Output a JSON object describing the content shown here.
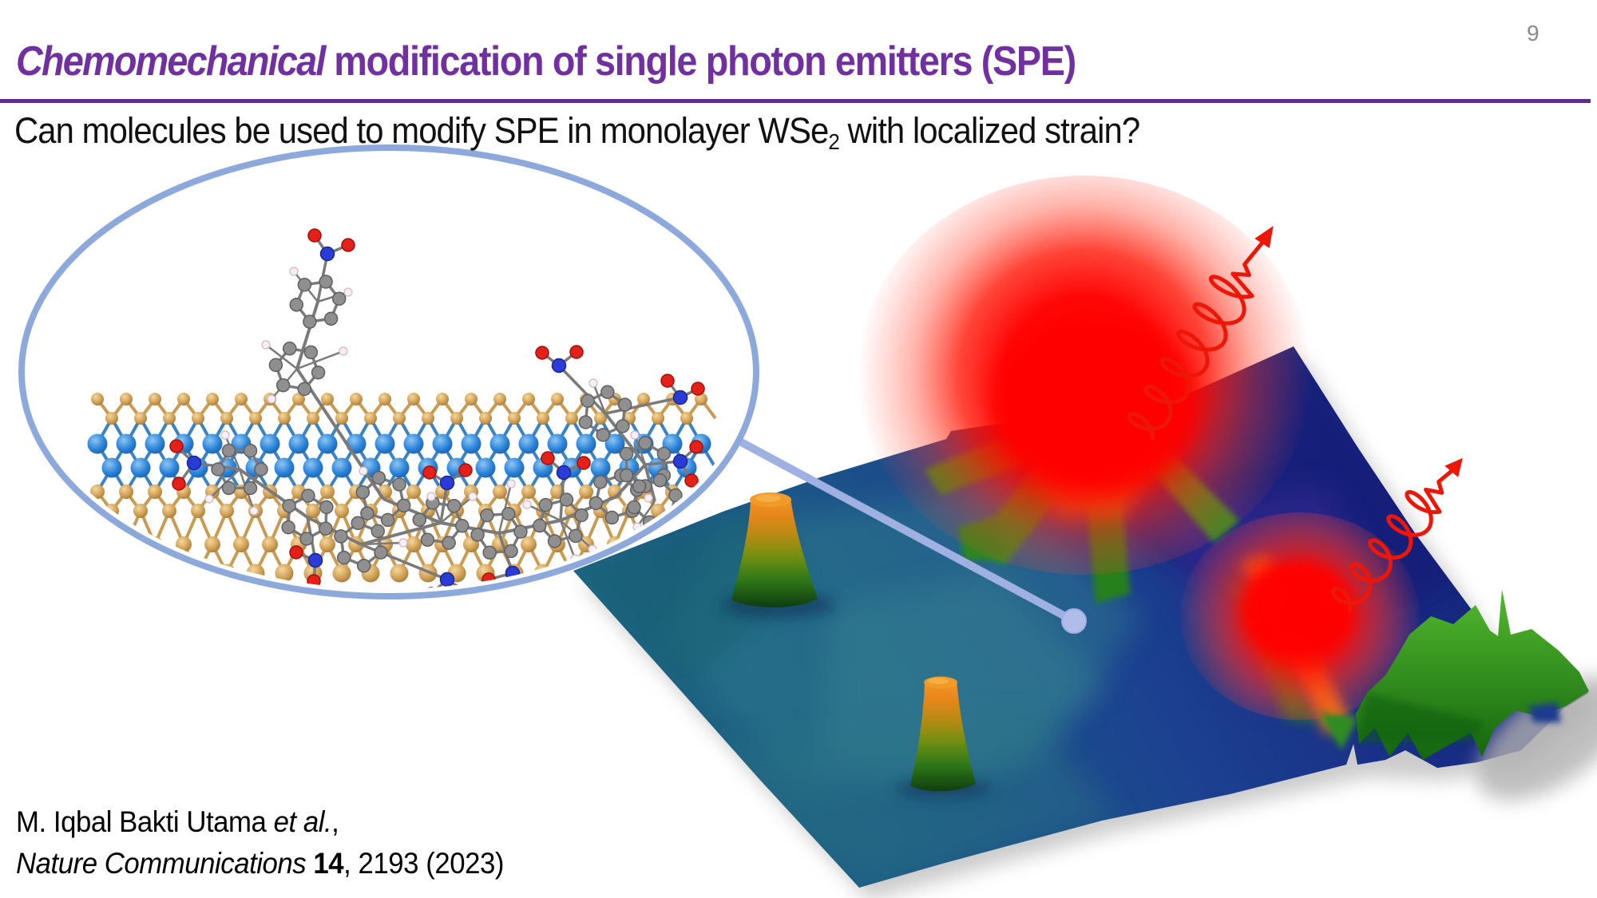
{
  "slide": {
    "page_number": "9",
    "title": {
      "italic": "Chemomechanical",
      "rest": " modification of single photon emitters (SPE)"
    },
    "question": {
      "pre": "Can molecules be used to modify SPE in monolayer WSe",
      "sub": "2",
      "post": " with localized strain?"
    },
    "citation": {
      "authors": "M. Iqbal Bakti Utama ",
      "etal": "et al.",
      "after_etal": ",",
      "journal": "Nature Communications ",
      "volume": "14",
      "rest": ", 2193 (2023)"
    }
  },
  "figure": {
    "inset_icon": "molecular-model-wse2-inset",
    "surface_icon": "nanoscale-strain-surface-3d-map",
    "emission_icon": "photon-wave-arrow",
    "callout_icon": "callout-line-dot"
  },
  "colors": {
    "accent_purple": "#7030a0",
    "rule_purple": "#5f2d91",
    "page_gray": "#8a8a8a",
    "text_black": "#111111",
    "ellipse_blue": "#8da9db",
    "callout_blue": "#9fb0e2",
    "callout_dot": "#b0bde8",
    "photon_red": "#ed1607",
    "glow_red": "#ff0000",
    "surface_teal": "#1e6d7c",
    "surface_navy": "#162a80",
    "bump_orange": "#ee8a1d",
    "ridge_green": "#2f8c20",
    "se_gold": "#cf9f54",
    "w_blue": "#2a82d8",
    "carbon_gray": "#8f8f8f",
    "nitrogen_blue": "#2b3bd6",
    "oxygen_red": "#e32019",
    "hydrogen_white": "#f8eef4",
    "bond_gray": "#7a7a7a"
  }
}
